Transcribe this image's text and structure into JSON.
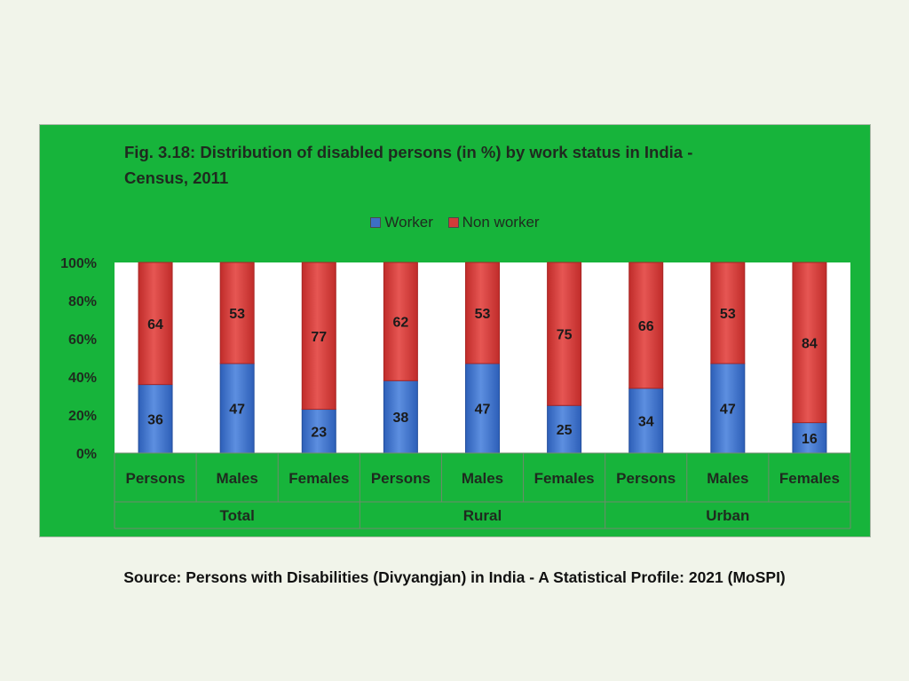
{
  "chart_data": {
    "type": "bar",
    "stacked": true,
    "title_lines": [
      "Fig. 3.18: Distribution of disabled persons (in %) by work status in India -",
      "Census, 2011"
    ],
    "categories": [
      "Persons",
      "Males",
      "Females",
      "Persons",
      "Males",
      "Females",
      "Persons",
      "Males",
      "Females"
    ],
    "groups": [
      {
        "label": "Total",
        "count": 3
      },
      {
        "label": "Rural",
        "count": 3
      },
      {
        "label": "Urban",
        "count": 3
      }
    ],
    "series": [
      {
        "name": "Worker",
        "color": "#3d6fc4",
        "values": [
          36,
          47,
          23,
          38,
          47,
          25,
          34,
          47,
          16
        ]
      },
      {
        "name": "Non worker",
        "color": "#d23c39",
        "values": [
          64,
          53,
          77,
          62,
          53,
          75,
          66,
          53,
          84
        ]
      }
    ],
    "yticks": [
      "0%",
      "20%",
      "40%",
      "60%",
      "80%",
      "100%"
    ],
    "ylim": [
      0,
      100
    ],
    "legend_position": "top-center",
    "grid": false
  },
  "source_text": "Source: Persons with Disabilities (Divyangjan) in India - A Statistical Profile: 2021 (MoSPI)"
}
